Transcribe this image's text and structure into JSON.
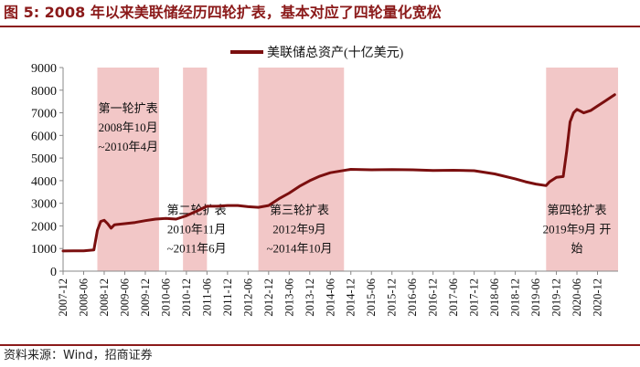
{
  "figure": {
    "title": "图 5:  2008 年以来美联储经历四轮扩表，基本对应了四轮量化宽松",
    "source": "资料来源：Wind，招商证券"
  },
  "chart_data": {
    "type": "line",
    "title": "",
    "xlabel": "",
    "ylabel": "",
    "ylim": [
      0,
      9000
    ],
    "yticks": [
      0,
      1000,
      2000,
      3000,
      4000,
      5000,
      6000,
      7000,
      8000,
      9000
    ],
    "xlim": [
      "2007-12",
      "2021-06"
    ],
    "xticks": [
      "2007-12",
      "2008-06",
      "2008-12",
      "2009-06",
      "2009-12",
      "2010-06",
      "2010-12",
      "2011-06",
      "2011-12",
      "2012-06",
      "2012-12",
      "2013-06",
      "2013-12",
      "2014-06",
      "2014-12",
      "2015-06",
      "2015-12",
      "2016-06",
      "2016-12",
      "2017-06",
      "2017-12",
      "2018-06",
      "2018-12",
      "2019-06",
      "2019-12",
      "2020-06",
      "2020-12"
    ],
    "grid": false,
    "legend_position": "top",
    "series": [
      {
        "name": "美联储总资产(十亿美元)",
        "color": "#7b0f0f",
        "points": [
          [
            "2007-12",
            890
          ],
          [
            "2008-03",
            900
          ],
          [
            "2008-06",
            900
          ],
          [
            "2008-09",
            940
          ],
          [
            "2008-10",
            1800
          ],
          [
            "2008-11",
            2200
          ],
          [
            "2008-12",
            2250
          ],
          [
            "2009-01",
            2100
          ],
          [
            "2009-02",
            1900
          ],
          [
            "2009-03",
            2050
          ],
          [
            "2009-06",
            2100
          ],
          [
            "2009-09",
            2150
          ],
          [
            "2009-12",
            2230
          ],
          [
            "2010-03",
            2300
          ],
          [
            "2010-06",
            2330
          ],
          [
            "2010-09",
            2300
          ],
          [
            "2010-12",
            2450
          ],
          [
            "2011-03",
            2650
          ],
          [
            "2011-06",
            2870
          ],
          [
            "2011-09",
            2870
          ],
          [
            "2011-12",
            2900
          ],
          [
            "2012-03",
            2900
          ],
          [
            "2012-06",
            2850
          ],
          [
            "2012-09",
            2820
          ],
          [
            "2012-12",
            2900
          ],
          [
            "2013-03",
            3200
          ],
          [
            "2013-06",
            3450
          ],
          [
            "2013-09",
            3750
          ],
          [
            "2013-12",
            4000
          ],
          [
            "2014-03",
            4200
          ],
          [
            "2014-06",
            4350
          ],
          [
            "2014-10",
            4450
          ],
          [
            "2014-12",
            4500
          ],
          [
            "2015-06",
            4480
          ],
          [
            "2015-12",
            4490
          ],
          [
            "2016-06",
            4480
          ],
          [
            "2016-12",
            4450
          ],
          [
            "2017-06",
            4460
          ],
          [
            "2017-12",
            4440
          ],
          [
            "2018-06",
            4300
          ],
          [
            "2018-12",
            4080
          ],
          [
            "2019-03",
            3950
          ],
          [
            "2019-06",
            3850
          ],
          [
            "2019-09",
            3780
          ],
          [
            "2019-10",
            3950
          ],
          [
            "2019-12",
            4150
          ],
          [
            "2020-02",
            4180
          ],
          [
            "2020-03",
            5300
          ],
          [
            "2020-04",
            6600
          ],
          [
            "2020-05",
            7000
          ],
          [
            "2020-06",
            7150
          ],
          [
            "2020-08",
            7000
          ],
          [
            "2020-10",
            7100
          ],
          [
            "2020-12",
            7300
          ],
          [
            "2021-02",
            7500
          ],
          [
            "2021-04",
            7700
          ],
          [
            "2021-05",
            7800
          ]
        ]
      }
    ],
    "shaded_periods": [
      {
        "start": "2008-10",
        "end": "2010-04",
        "label_lines": [
          "第一轮扩表",
          "2008年10月",
          "~2010年4月"
        ],
        "label_anchor": {
          "x": "2009-07",
          "y": 7020
        }
      },
      {
        "start": "2010-11",
        "end": "2011-06",
        "label_lines": [
          "第二轮扩表",
          "2010年11月",
          "~2011年6月"
        ],
        "label_anchor": {
          "x": "2011-03",
          "y": 2520
        }
      },
      {
        "start": "2012-09",
        "end": "2014-10",
        "label_lines": [
          "第三轮扩表",
          "2012年9月",
          "~2014年10月"
        ],
        "label_anchor": {
          "x": "2013-09",
          "y": 2520
        }
      },
      {
        "start": "2019-09",
        "end": "2021-06",
        "label_lines": [
          "第四轮扩表",
          "2019年9月 开",
          "始"
        ],
        "label_anchor": {
          "x": "2020-06",
          "y": 2520
        }
      }
    ],
    "colors": {
      "shade": "#f2c7c7",
      "axis": "#888888",
      "text": "#111111"
    }
  }
}
